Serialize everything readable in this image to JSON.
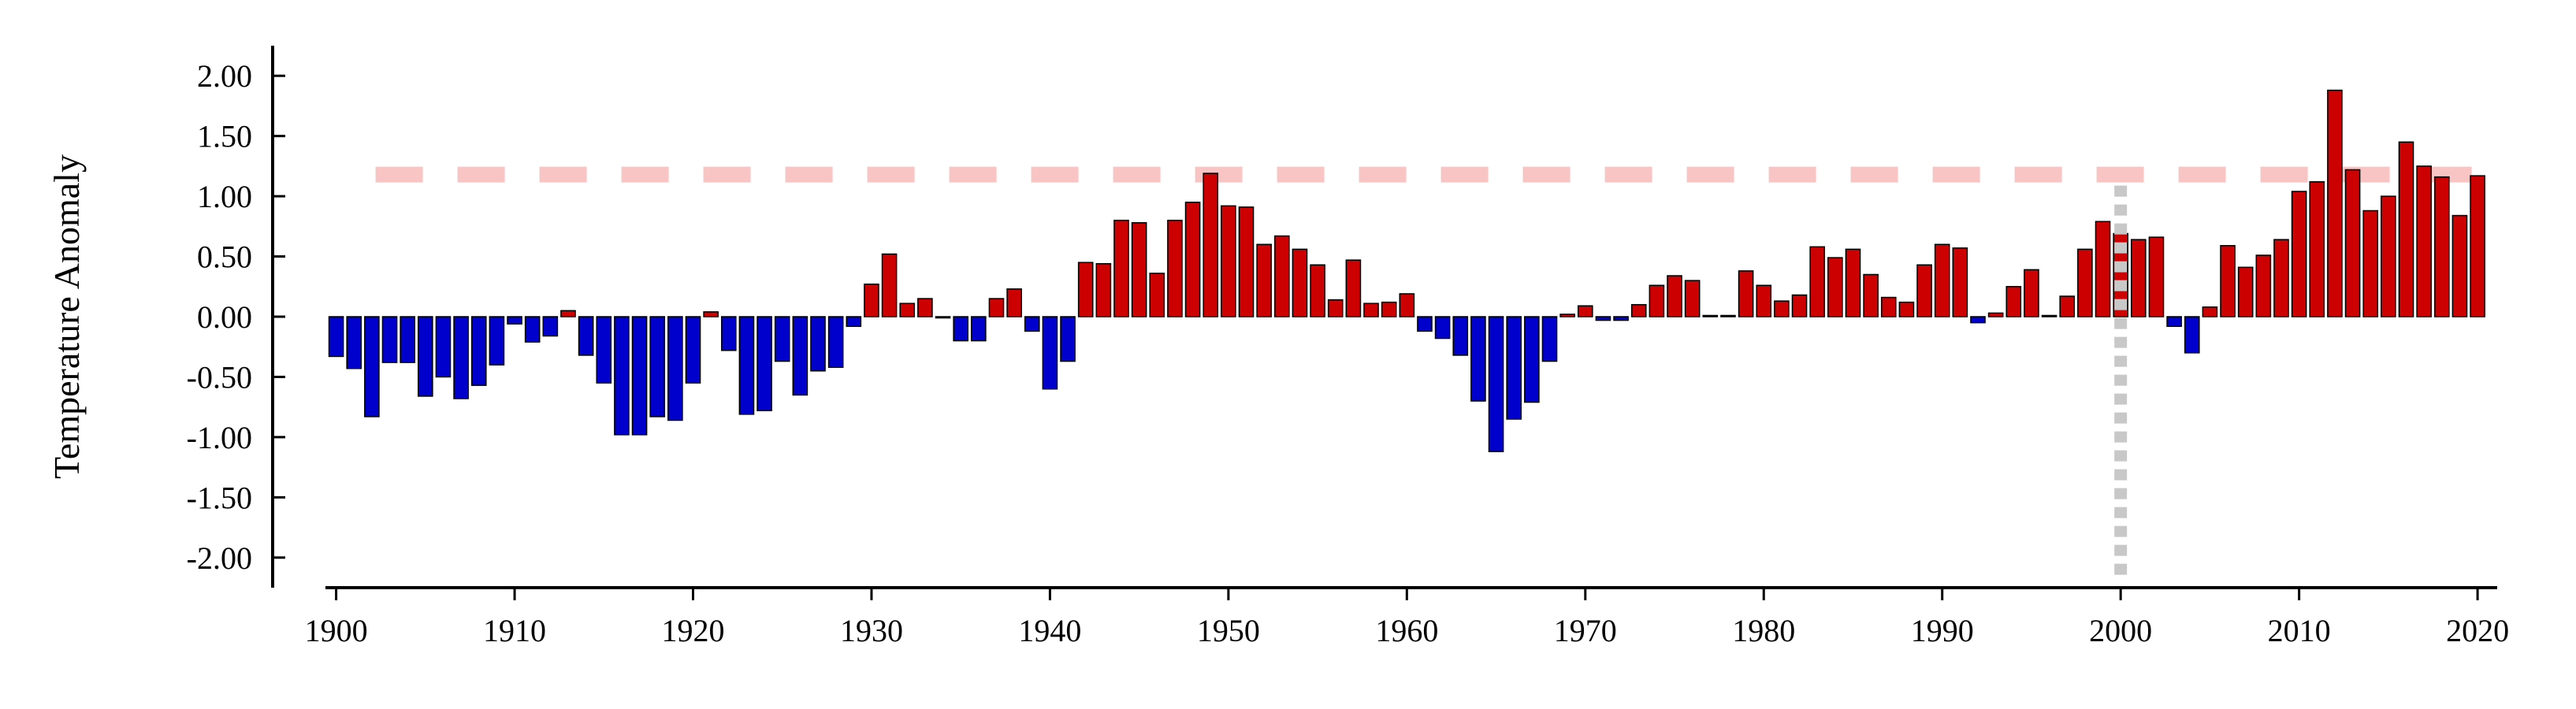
{
  "chart_data": {
    "type": "bar",
    "ylabel": "Temperature Anomaly",
    "x": [
      1900,
      1901,
      1902,
      1903,
      1904,
      1905,
      1906,
      1907,
      1908,
      1909,
      1910,
      1911,
      1912,
      1913,
      1914,
      1915,
      1916,
      1917,
      1918,
      1919,
      1920,
      1921,
      1922,
      1923,
      1924,
      1925,
      1926,
      1927,
      1928,
      1929,
      1930,
      1931,
      1932,
      1933,
      1934,
      1935,
      1936,
      1937,
      1938,
      1939,
      1940,
      1941,
      1942,
      1943,
      1944,
      1945,
      1946,
      1947,
      1948,
      1949,
      1950,
      1951,
      1952,
      1953,
      1954,
      1955,
      1956,
      1957,
      1958,
      1959,
      1960,
      1961,
      1962,
      1963,
      1964,
      1965,
      1966,
      1967,
      1968,
      1969,
      1970,
      1971,
      1972,
      1973,
      1974,
      1975,
      1976,
      1977,
      1978,
      1979,
      1980,
      1981,
      1982,
      1983,
      1984,
      1985,
      1986,
      1987,
      1988,
      1989,
      1990,
      1991,
      1992,
      1993,
      1994,
      1995,
      1996,
      1997,
      1998,
      1999,
      2000,
      2001,
      2002,
      2003,
      2004,
      2005,
      2006,
      2007,
      2008,
      2009,
      2010,
      2011,
      2012,
      2013,
      2014,
      2015,
      2016,
      2017,
      2018,
      2019,
      2020
    ],
    "values": [
      -0.33,
      -0.43,
      -0.83,
      -0.38,
      -0.38,
      -0.66,
      -0.5,
      -0.68,
      -0.57,
      -0.4,
      -0.06,
      -0.21,
      -0.16,
      0.05,
      -0.32,
      -0.55,
      -0.98,
      -0.98,
      -0.83,
      -0.86,
      -0.55,
      0.04,
      -0.28,
      -0.81,
      -0.78,
      -0.37,
      -0.65,
      -0.45,
      -0.42,
      -0.08,
      0.27,
      0.52,
      0.11,
      0.15,
      -0.01,
      -0.2,
      -0.2,
      0.15,
      0.23,
      -0.12,
      -0.6,
      -0.37,
      0.45,
      0.44,
      0.8,
      0.78,
      0.36,
      0.8,
      0.95,
      1.19,
      0.92,
      0.91,
      0.6,
      0.67,
      0.56,
      0.43,
      0.14,
      0.47,
      0.11,
      0.12,
      0.19,
      -0.12,
      -0.18,
      -0.32,
      -0.7,
      -1.12,
      -0.85,
      -0.71,
      -0.37,
      0.02,
      0.09,
      -0.03,
      -0.03,
      0.1,
      0.26,
      0.34,
      0.3,
      0.01,
      0.01,
      0.38,
      0.26,
      0.13,
      0.18,
      0.58,
      0.49,
      0.56,
      0.35,
      0.16,
      0.12,
      0.43,
      0.6,
      0.57,
      -0.05,
      0.03,
      0.25,
      0.39,
      0.01,
      0.17,
      0.56,
      0.79,
      0.69,
      0.64,
      0.66,
      -0.08,
      -0.3,
      0.08,
      0.59,
      0.41,
      0.51,
      0.64,
      1.04,
      1.12,
      1.88,
      1.22,
      0.88,
      1.0,
      1.45,
      1.25,
      1.16,
      0.84,
      1.17
    ],
    "positive_color": "#cc0000",
    "negative_color": "#0000cc",
    "hline": 1.18,
    "hline_color": "#f9c4c4",
    "vline": 2000,
    "vline_color": "#c8c8c8",
    "xlim": [
      1899.4,
      2021.1
    ],
    "xticks": [
      1900,
      1910,
      1920,
      1930,
      1940,
      1950,
      1960,
      1970,
      1980,
      1990,
      2000,
      2010,
      2020
    ],
    "ylim": [
      -2.25,
      2.25
    ],
    "yticks": [
      {
        "value": -2,
        "label": "-2.00"
      },
      {
        "value": -1.5,
        "label": "-1.50"
      },
      {
        "value": -1,
        "label": "-1.00"
      },
      {
        "value": -0.5,
        "label": "-0.50"
      },
      {
        "value": 0,
        "label": "0.00"
      },
      {
        "value": 0.5,
        "label": "0.50"
      },
      {
        "value": 1,
        "label": "1.00"
      },
      {
        "value": 1.5,
        "label": "1.50"
      },
      {
        "value": 2,
        "label": "2.00"
      }
    ]
  }
}
